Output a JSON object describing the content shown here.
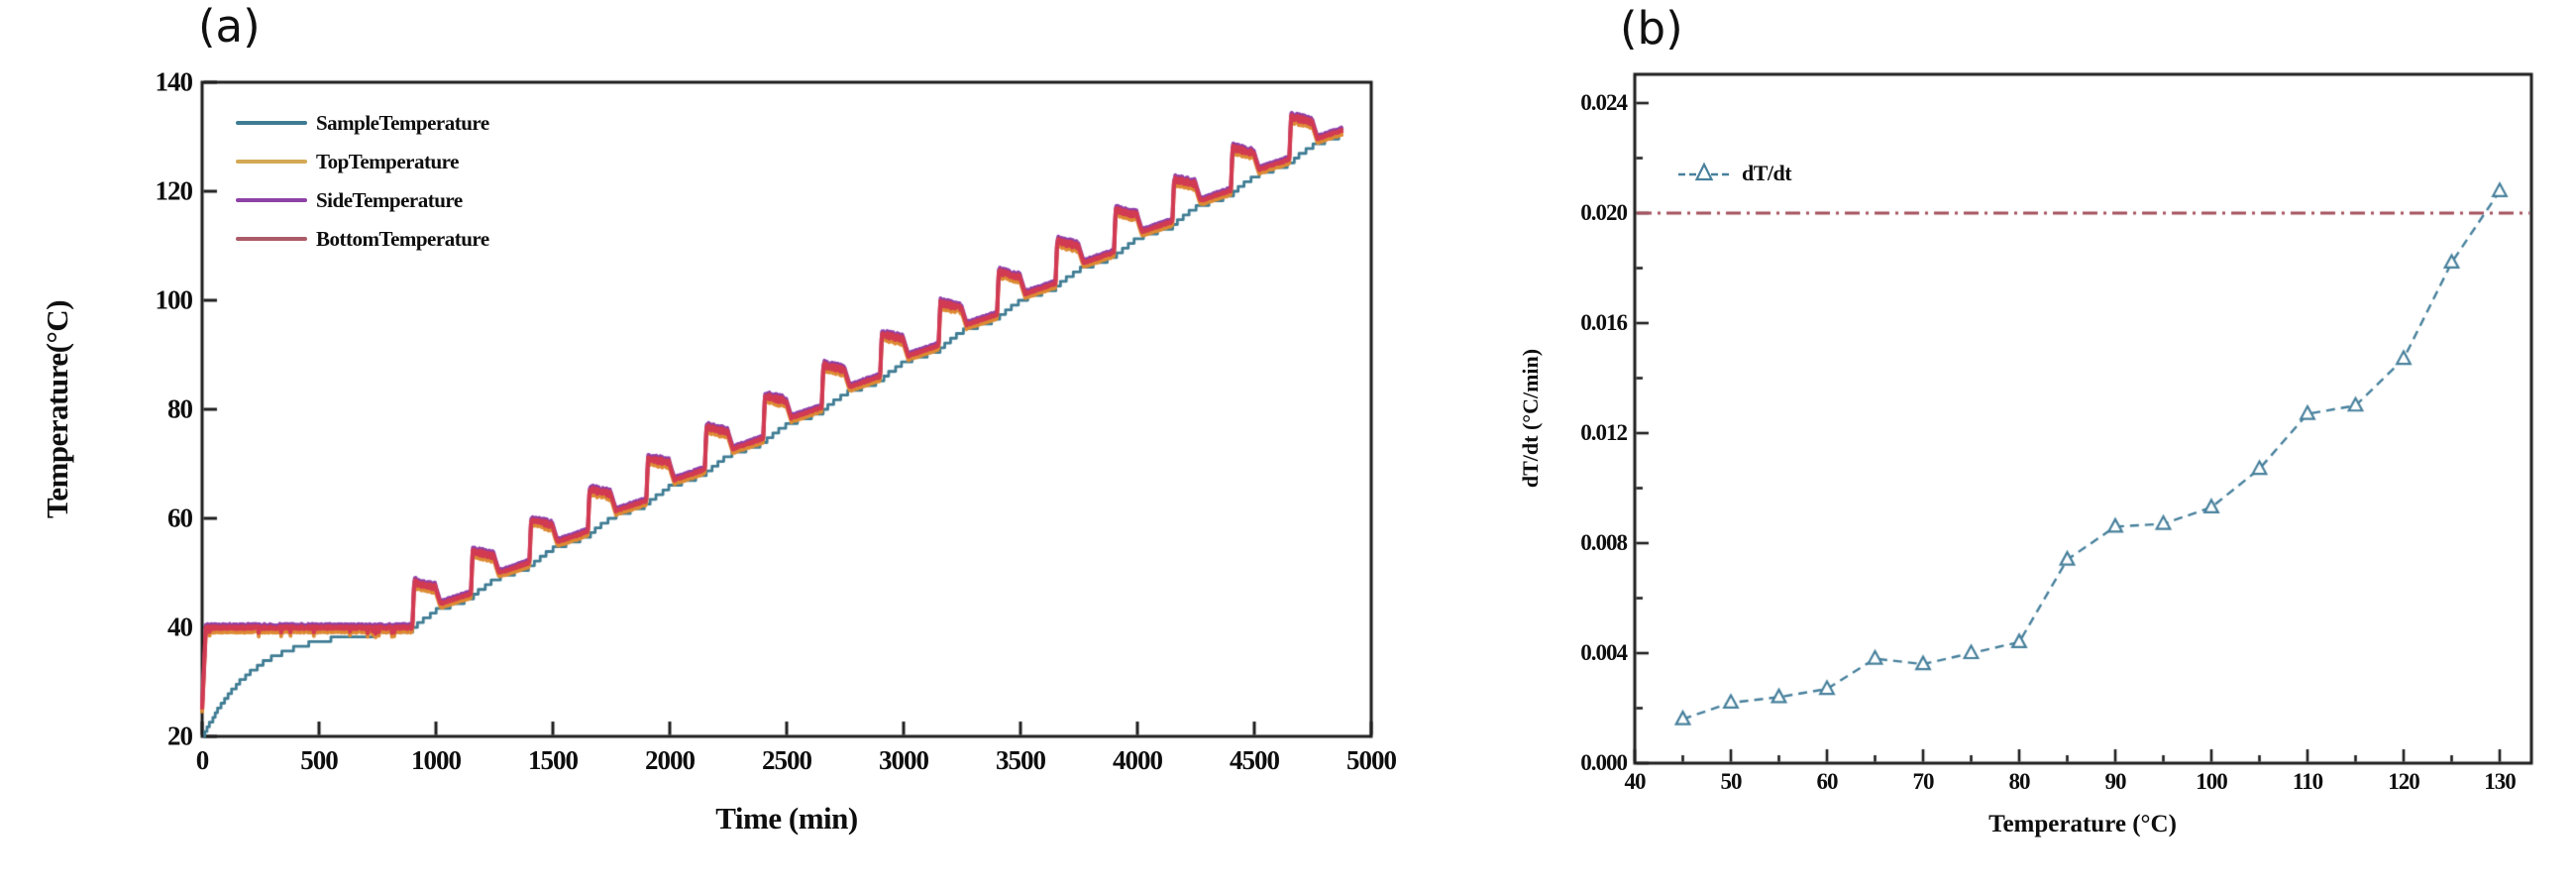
{
  "figure": {
    "background": "#ffffff",
    "frame_color": "#1c1c1c",
    "text_color": "#0e0e0e"
  },
  "panel_a": {
    "label": "(a)",
    "axes": {
      "x_label": "Time (min)",
      "y_label": "Temperature(°C)"
    },
    "legend": {
      "items": [
        {
          "label": "SampleTemperature",
          "color": "#3e7c93"
        },
        {
          "label": "TopTemperature",
          "color": "#d4a855"
        },
        {
          "label": "SideTemperature",
          "color": "#8f42a6"
        },
        {
          "label": "BottomTemperature",
          "color": "#ab5b68"
        }
      ]
    }
  },
  "panel_b": {
    "label": "(b)",
    "axes": {
      "x_label": "Temperature (°C)",
      "y_label": "dT/dt (°C/min)"
    },
    "legend": {
      "label": "dT/dt",
      "marker": "open-triangle-icon",
      "color": "#47809c"
    }
  },
  "chart_data": [
    {
      "type": "line",
      "panel": "a",
      "title": "(a)",
      "xlabel": "Time (min)",
      "ylabel": "Temperature(°C)",
      "xlim": [
        0,
        5000
      ],
      "ylim": [
        20,
        140
      ],
      "grid": false,
      "legend_position": "upper left",
      "x_ticks": {
        "values": [
          0,
          500,
          1000,
          1500,
          2000,
          2500,
          3000,
          3500,
          4000,
          4500,
          5000
        ],
        "labels": [
          "0",
          "500",
          "1000",
          "1500",
          "2000",
          "2500",
          "3000",
          "3500",
          "4000",
          "4500",
          "5000"
        ]
      },
      "y_ticks": {
        "values": [
          20,
          40,
          60,
          80,
          100,
          120,
          140
        ],
        "labels": [
          "20",
          "40",
          "60",
          "80",
          "100",
          "120",
          "140"
        ]
      },
      "series": [
        {
          "name": "SampleTemperature",
          "color": "#3e7c93",
          "role": "sample",
          "description": "Smooth exponential rise 20→40 °C during 0–900 min soak, then small-stepped quasi-linear ramp reaching ≈131 °C at 4880 min",
          "anchors": [
            [
              0,
              20
            ],
            [
              150,
              29.9
            ],
            [
              300,
              34.9
            ],
            [
              450,
              37.5
            ],
            [
              600,
              38.8
            ],
            [
              750,
              39.4
            ],
            [
              900,
              40
            ],
            [
              1400,
              51.4
            ],
            [
              1900,
              62.8
            ],
            [
              2400,
              74.1
            ],
            [
              2900,
              85.5
            ],
            [
              3400,
              96.9
            ],
            [
              3900,
              108.3
            ],
            [
              4400,
              119.7
            ],
            [
              4880,
              130.9
            ]
          ]
        },
        {
          "name": "TopTemperature",
          "color": "#dd8a33",
          "role": "wall",
          "offset": -0.75
        },
        {
          "name": "SideTemperature",
          "color": "#8f3fa8",
          "role": "wall",
          "offset": 0.4
        },
        {
          "name": "BottomTemperature",
          "color": "#d23a52",
          "role": "wall",
          "offset": -0.05
        }
      ],
      "heating_cycle": {
        "description": "Wall (top/side/bottom) temperatures sit at 40 °C during the soak, then every 250 min cycle jump ≈8 °C above the sample ramp, hold ≈100 min with noise, fall back and track the sample until the next cycle",
        "wall_start_temp": 25,
        "soak_level": 40,
        "soak_end": 900,
        "period": 250,
        "cycles": 16,
        "step_per_cycle": 5.69,
        "pulse_top_offset": 8.3,
        "pulse_hold": 98,
        "pulse_fall": 22,
        "pulse_top_levels": [
          48.3,
          54.0,
          59.7,
          65.4,
          71.1,
          76.8,
          82.4,
          88.1,
          93.8,
          99.5,
          105.2,
          110.9,
          116.6,
          122.3,
          128.0,
          133.7
        ]
      }
    },
    {
      "type": "line-scatter",
      "panel": "b",
      "title": "(b)",
      "xlabel": "Temperature (°C)",
      "ylabel": "dT/dt (°C/min)",
      "xlim": [
        38.5,
        133.5
      ],
      "ylim": [
        0,
        0.025
      ],
      "grid": false,
      "legend_position": "upper left",
      "x_ticks": {
        "values": [
          40,
          50,
          60,
          70,
          80,
          90,
          100,
          110,
          120,
          130
        ],
        "labels": [
          "40",
          "50",
          "60",
          "70",
          "80",
          "90",
          "100",
          "110",
          "120",
          "130"
        ]
      },
      "y_ticks": {
        "values": [
          0,
          0.004,
          0.008,
          0.012,
          0.016,
          0.02,
          0.024
        ],
        "labels": [
          "0.000",
          "0.004",
          "0.008",
          "0.012",
          "0.016",
          "0.020",
          "0.024"
        ]
      },
      "minor_x_step": 5,
      "minor_y_step": 0.002,
      "series": [
        {
          "name": "dT/dt",
          "color": "#47809c",
          "marker": "open-triangle",
          "line_style": "dashed",
          "x": [
            45,
            50,
            55,
            60,
            65,
            70,
            75,
            80,
            85,
            90,
            95,
            100,
            105,
            110,
            115,
            120,
            125,
            130
          ],
          "values": [
            0.0016,
            0.0022,
            0.0024,
            0.0027,
            0.0038,
            0.0036,
            0.004,
            0.0044,
            0.0074,
            0.0086,
            0.0087,
            0.0093,
            0.0107,
            0.0127,
            0.013,
            0.0147,
            0.0182,
            0.0208
          ]
        }
      ],
      "threshold_line": {
        "y": 0.02,
        "style": "dash-dot",
        "color": "#a5525e"
      }
    }
  ]
}
